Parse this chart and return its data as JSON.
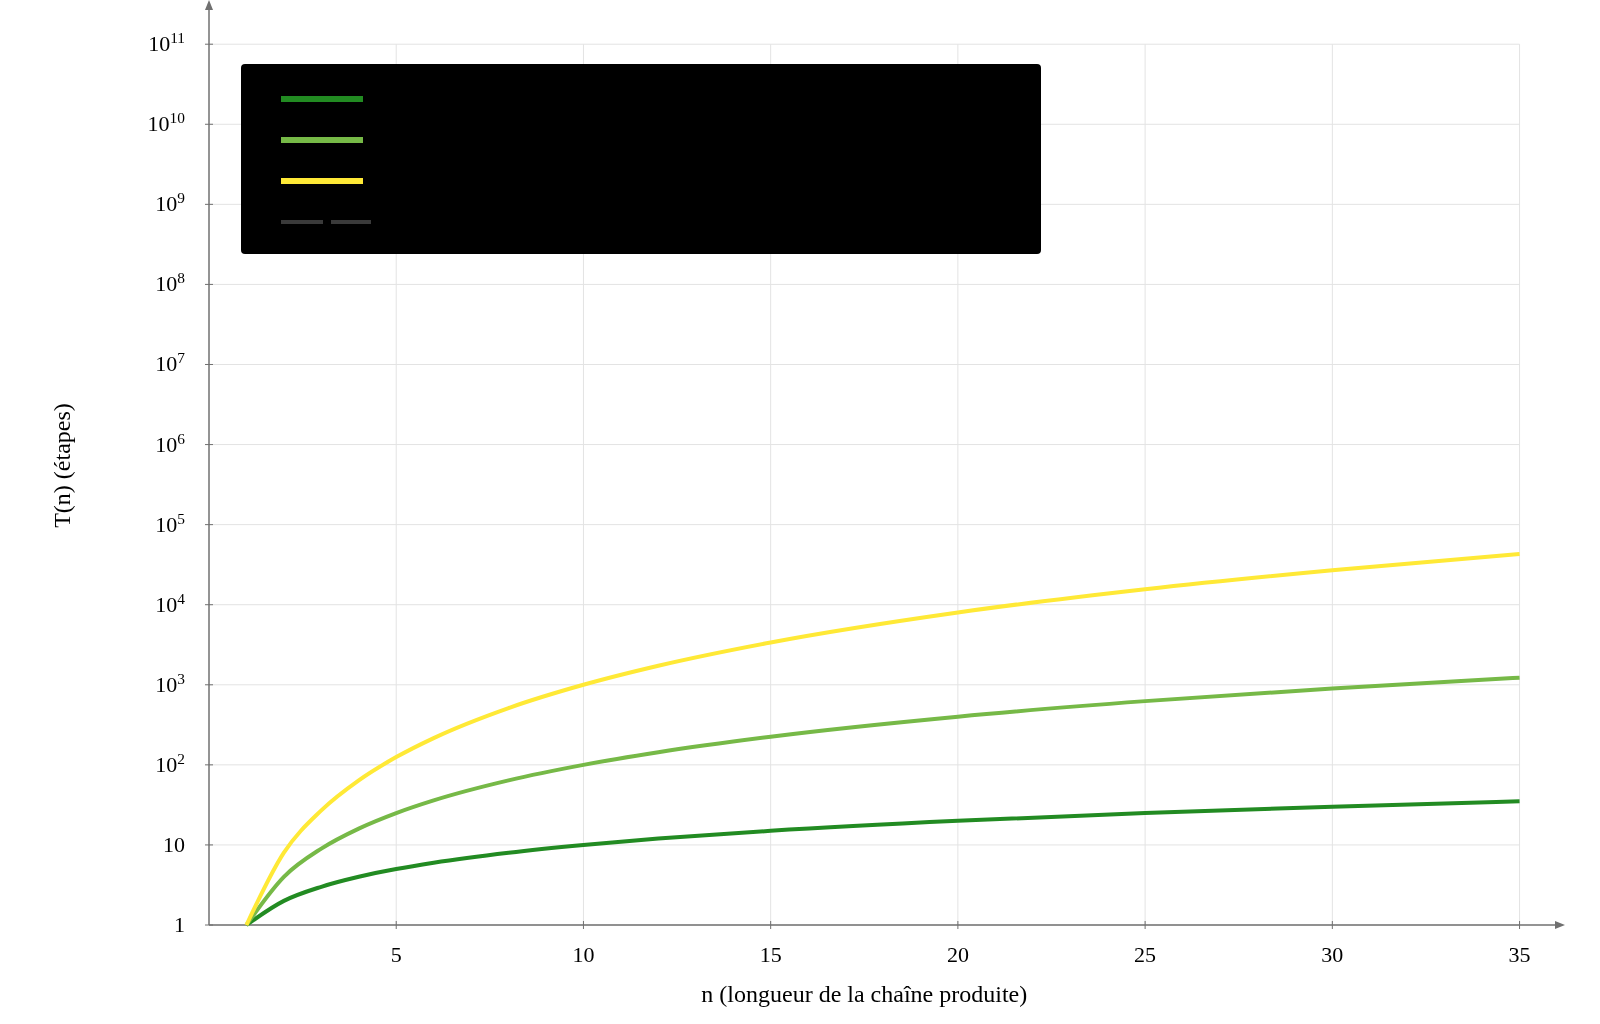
{
  "chart_data": {
    "type": "line",
    "xlabel": "n (longueur de la chaîne produite)",
    "ylabel": "T(n) (étapes)",
    "x": [
      1,
      2,
      3,
      4,
      5,
      6,
      8,
      10,
      12,
      15,
      20,
      25,
      30,
      35
    ],
    "series": [
      {
        "color": "#228b22",
        "values": [
          1,
          2,
          3,
          4,
          5,
          6,
          8,
          10,
          12,
          15,
          20,
          25,
          30,
          35
        ]
      },
      {
        "color": "#76b947",
        "values": [
          1,
          4,
          9,
          16,
          25,
          36,
          64,
          100,
          144,
          225,
          400,
          625,
          900,
          1225
        ]
      },
      {
        "color": "#ffe936",
        "values": [
          1,
          8,
          27,
          64,
          125,
          216,
          512,
          1000,
          1728,
          3375,
          8000,
          15625,
          27000,
          42875
        ]
      }
    ],
    "log": "y",
    "xlim": [
      0,
      36
    ],
    "ylim": [
      1,
      300000000000
    ],
    "xticks": [
      5,
      10,
      15,
      20,
      25,
      30,
      35
    ],
    "yticks": [
      1,
      10,
      {
        "value": 100,
        "label": "10$^{2}$"
      },
      {
        "value": 1000,
        "label": "10$^{3}$"
      },
      {
        "value": 10000,
        "label": "10$^{4}$"
      },
      {
        "value": 100000,
        "label": "10$^{5}$"
      },
      {
        "value": 1000000,
        "label": "10$^{6}$"
      },
      {
        "value": 10000000,
        "label": "10$^{7}$"
      },
      {
        "value": 100000000,
        "label": "10$^{8}$"
      },
      {
        "value": 1000000000,
        "label": "10$^{9}$"
      },
      {
        "value": 10000000000,
        "label": "10$^{10}$"
      },
      {
        "value": 100000000000,
        "label": "10$^{11}$"
      }
    ],
    "grid": true,
    "line_style": "solid"
  }
}
